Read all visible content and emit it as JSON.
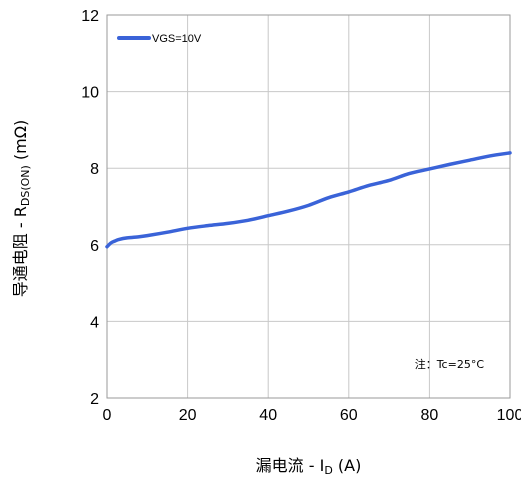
{
  "chart_data": {
    "type": "line",
    "xlabel": {
      "main": "漏电流 - I",
      "sub": "D",
      "suffix": " (A)"
    },
    "ylabel": {
      "main": "导通电阻 - R",
      "sub": "DS(ON)",
      "suffix": " (mΩ)"
    },
    "xlim": [
      0,
      100
    ],
    "ylim": [
      2,
      12
    ],
    "xticks": [
      0,
      20,
      40,
      60,
      80,
      100
    ],
    "yticks": [
      2,
      4,
      6,
      8,
      10,
      12
    ],
    "xtick_labels": [
      "0",
      "20",
      "40",
      "60",
      "80",
      "100"
    ],
    "ytick_labels": [
      "2",
      "4",
      "6",
      "8",
      "10",
      "12"
    ],
    "grid": true,
    "legend_position": "top-left",
    "series": [
      {
        "name": "VGS=10V",
        "color": "#3a63d8",
        "x": [
          0,
          1,
          2,
          3,
          5,
          8,
          10,
          15,
          20,
          25,
          30,
          35,
          40,
          45,
          50,
          55,
          60,
          65,
          70,
          75,
          80,
          85,
          90,
          95,
          100
        ],
        "y": [
          5.95,
          6.05,
          6.1,
          6.14,
          6.18,
          6.21,
          6.24,
          6.33,
          6.43,
          6.5,
          6.56,
          6.64,
          6.76,
          6.88,
          7.03,
          7.23,
          7.38,
          7.55,
          7.68,
          7.86,
          7.98,
          8.1,
          8.21,
          8.32,
          8.4
        ]
      }
    ],
    "annotation": "注：Tc=25°C"
  }
}
